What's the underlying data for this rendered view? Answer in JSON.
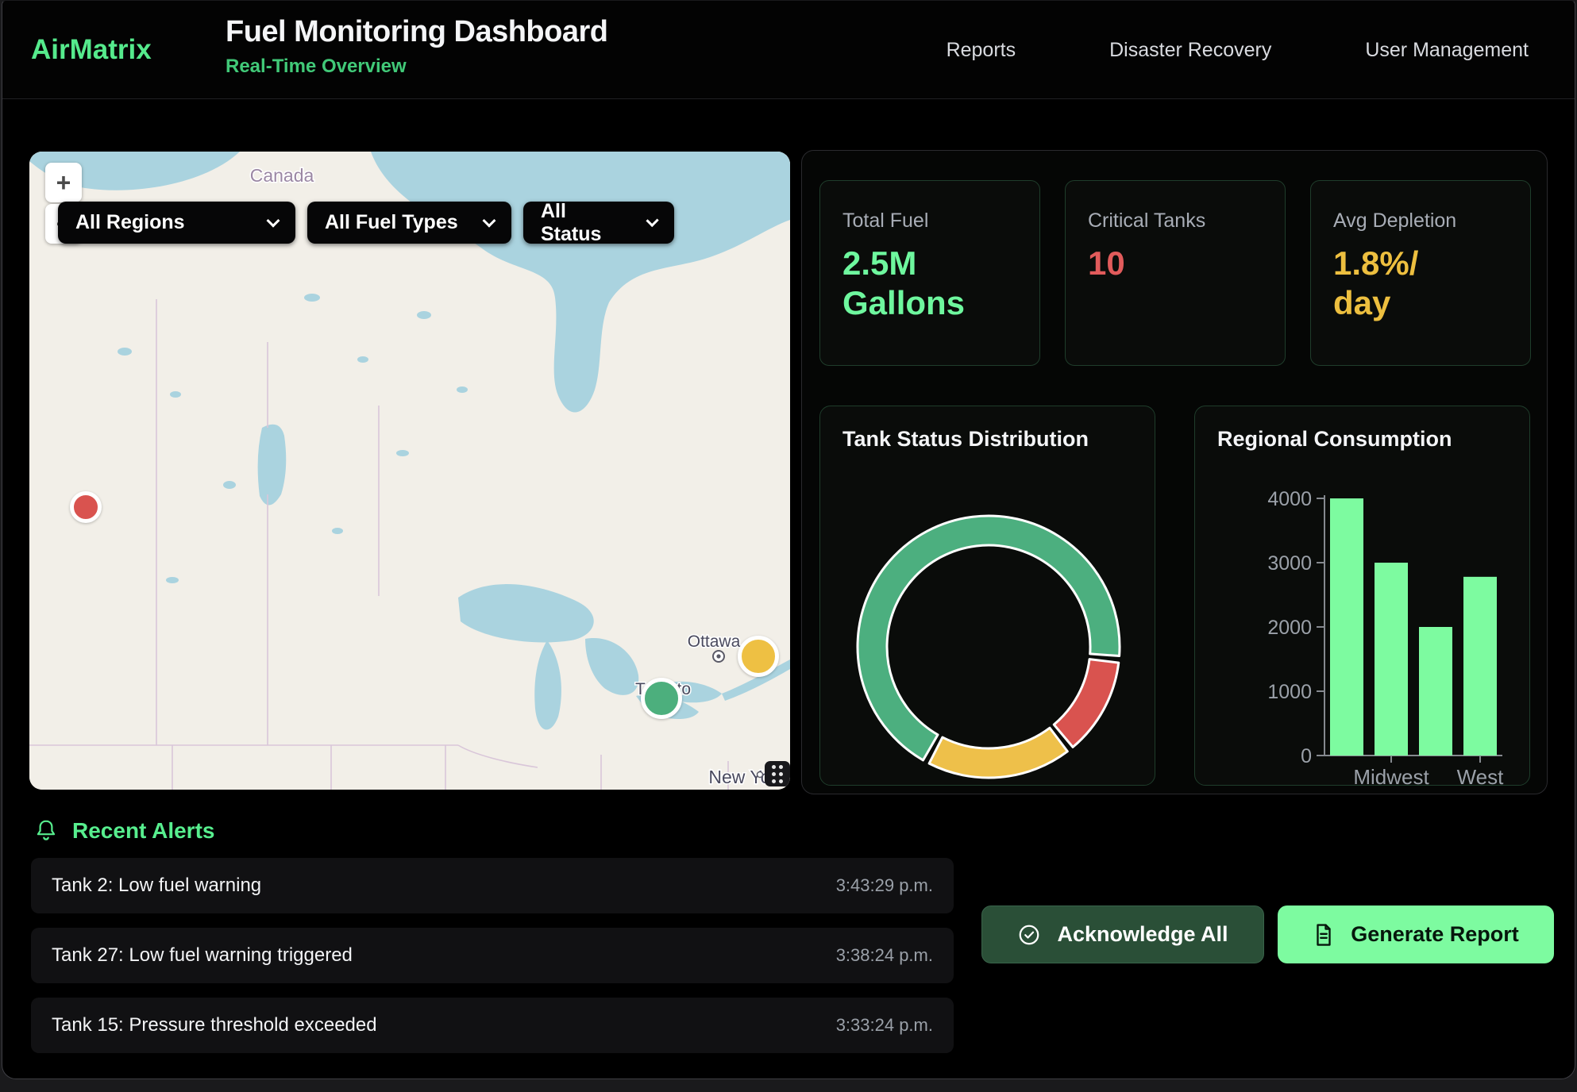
{
  "colors": {
    "accent_green": "#55ea8c",
    "subtitle_green": "#41c978",
    "bright_green": "#7dfba0",
    "stat_green": "#6ef79e",
    "stat_red": "#e15b5b",
    "stat_amber": "#edbf3f",
    "donut_green": "#4caf7f",
    "donut_red": "#d9534f",
    "donut_yellow": "#eec04a"
  },
  "header": {
    "logo": "AirMatrix",
    "title": "Fuel Monitoring Dashboard",
    "subtitle": "Real-Time Overview",
    "nav": [
      {
        "label": "Reports"
      },
      {
        "label": "Disaster Recovery"
      },
      {
        "label": "User Management"
      }
    ]
  },
  "map": {
    "zoom_in": "+",
    "zoom_out": "−",
    "filters": [
      {
        "value": "All Regions"
      },
      {
        "value": "All Fuel Types"
      },
      {
        "value": "All Status"
      }
    ],
    "labels": {
      "country": "Canada",
      "ottawa": "Ottawa",
      "toronto": "Toronto",
      "new_york": "New York"
    },
    "markers": [
      {
        "color": "red"
      },
      {
        "color": "yellow"
      },
      {
        "color": "green"
      }
    ]
  },
  "stats": [
    {
      "label": "Total Fuel",
      "value": "2.5M Gallons",
      "lines": [
        "2.5M",
        "Gallons"
      ],
      "color": "green"
    },
    {
      "label": "Critical Tanks",
      "value": "10",
      "lines": [
        "10"
      ],
      "color": "red"
    },
    {
      "label": "Avg Depletion",
      "value": "1.8%/day",
      "lines": [
        "1.8%/",
        "day"
      ],
      "color": "amber"
    }
  ],
  "charts": {
    "donut_title": "Tank Status Distribution",
    "bar_title": "Regional Consumption"
  },
  "chart_data": [
    {
      "type": "pie",
      "subtype": "donut",
      "title": "Tank Status Distribution",
      "segments": [
        {
          "name": "critical",
          "color": "#d9534f",
          "start_deg": 97,
          "end_deg": 140
        },
        {
          "name": "warning",
          "color": "#eec04a",
          "start_deg": 143,
          "end_deg": 207
        },
        {
          "name": "normal",
          "color": "#4caf7f",
          "start_deg": 210,
          "end_deg": 454
        }
      ],
      "approx_percents": {
        "normal": 68,
        "warning": 18,
        "critical": 12
      },
      "legend": "none"
    },
    {
      "type": "bar",
      "title": "Regional Consumption",
      "values": [
        4000,
        3000,
        2000,
        2780
      ],
      "visible_x_labels": [
        {
          "label": "Midwest",
          "bar_index": 1
        },
        {
          "label": "West",
          "bar_index": 3
        }
      ],
      "yticks": [
        0,
        1000,
        2000,
        3000,
        4000
      ],
      "ylim": [
        0,
        4000
      ],
      "bar_color": "#7dfba0",
      "grid": "off",
      "legend": "none"
    }
  ],
  "alerts": {
    "title": "Recent Alerts",
    "items": [
      {
        "message": "Tank 2: Low fuel warning",
        "time": "3:43:29 p.m."
      },
      {
        "message": "Tank 27: Low fuel warning triggered",
        "time": "3:38:24 p.m."
      },
      {
        "message": "Tank 15: Pressure threshold exceeded",
        "time": "3:33:24 p.m."
      }
    ]
  },
  "actions": {
    "acknowledge": "Acknowledge All",
    "generate": "Generate Report"
  }
}
